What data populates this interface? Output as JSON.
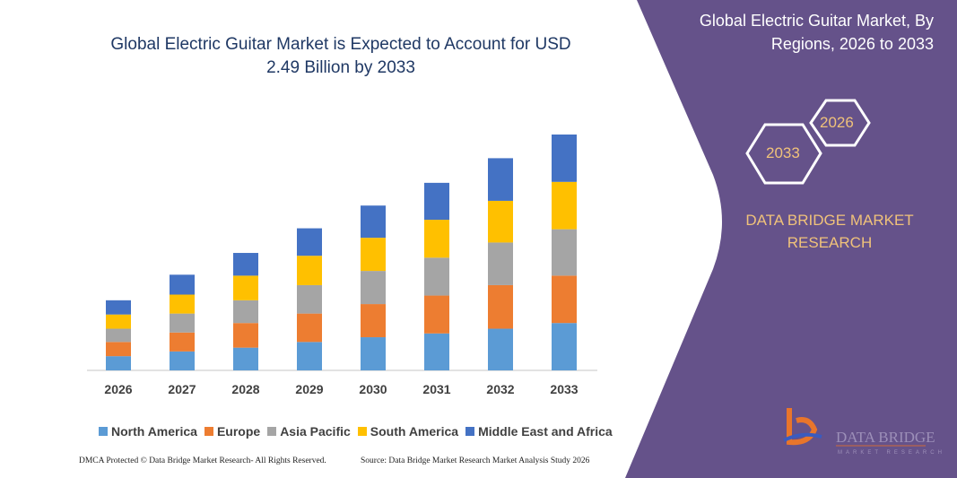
{
  "chart_data": {
    "type": "bar",
    "stacked": true,
    "title": "Global Electric Guitar Market is Expected to Account for USD 2.49 Billion by 2033",
    "xlabel": "",
    "ylabel": "",
    "grid": false,
    "legend_position": "bottom",
    "categories": [
      "2026",
      "2027",
      "2028",
      "2029",
      "2030",
      "2031",
      "2032",
      "2033"
    ],
    "ylim": [
      0,
      2.6
    ],
    "series": [
      {
        "name": "North America",
        "color": "#5b9bd5",
        "values": [
          0.15,
          0.2,
          0.24,
          0.3,
          0.35,
          0.39,
          0.44,
          0.5
        ]
      },
      {
        "name": "Europe",
        "color": "#ed7d31",
        "values": [
          0.15,
          0.2,
          0.26,
          0.3,
          0.35,
          0.4,
          0.46,
          0.5
        ]
      },
      {
        "name": "Asia Pacific",
        "color": "#a5a5a5",
        "values": [
          0.14,
          0.2,
          0.24,
          0.3,
          0.35,
          0.4,
          0.45,
          0.49
        ]
      },
      {
        "name": "South America",
        "color": "#ffc000",
        "values": [
          0.15,
          0.2,
          0.26,
          0.31,
          0.35,
          0.4,
          0.44,
          0.5
        ]
      },
      {
        "name": "Middle East and Africa",
        "color": "#4472c4",
        "values": [
          0.15,
          0.21,
          0.24,
          0.29,
          0.34,
          0.39,
          0.45,
          0.5
        ]
      }
    ]
  },
  "side_panel": {
    "title": "Global Electric Guitar Market, By Regions, 2026 to 2033",
    "hex_start": "2026",
    "hex_end": "2033",
    "brand": "DATA BRIDGE MARKET RESEARCH",
    "logo_text": "DATA BRIDGE",
    "logo_subtext": "MARKET RESEARCH",
    "panel_color": "#65528a",
    "accent_color": "#f0c27a"
  },
  "footer": {
    "left": "DMCA Protected © Data Bridge Market Research- All Rights Reserved.",
    "right": "Source: Data Bridge Market Research Market Analysis Study 2026"
  }
}
